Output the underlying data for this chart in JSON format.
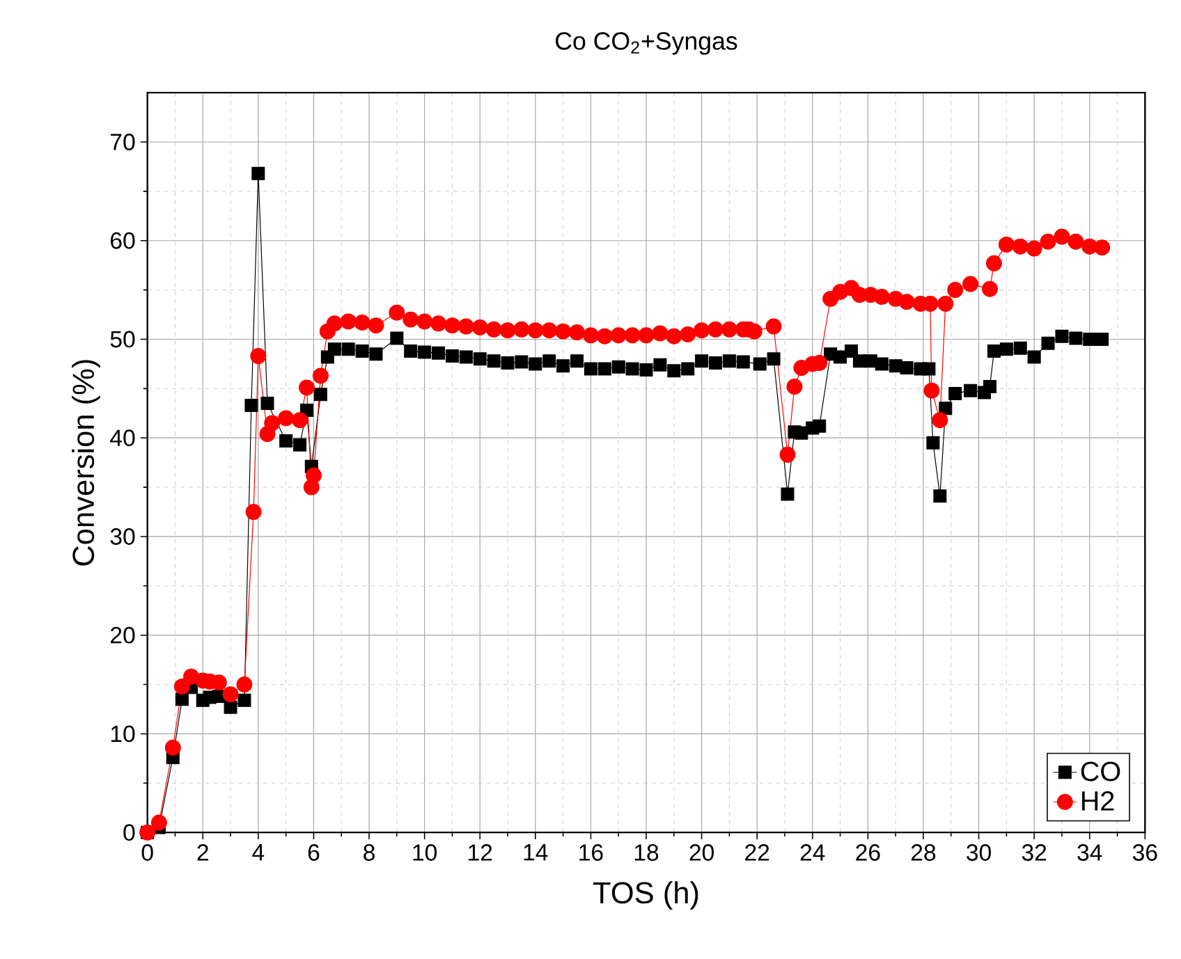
{
  "chart_data": {
    "type": "line",
    "title": "Co CO$_{2}$+Syngas",
    "xlabel": "TOS (h)",
    "ylabel": "Conversion (%)",
    "xlim": [
      0,
      36
    ],
    "xticks": [
      0,
      2,
      4,
      6,
      8,
      10,
      12,
      14,
      16,
      18,
      20,
      22,
      24,
      26,
      28,
      30,
      32,
      34,
      36
    ],
    "ylim": [
      0,
      75
    ],
    "yticks": [
      0,
      10,
      20,
      30,
      40,
      50,
      60,
      70
    ],
    "grid": true,
    "legend": "bottom right",
    "line_style": "solid",
    "series": [
      {
        "name": "CO",
        "color": "#000000",
        "marker": "square",
        "x": [
          0,
          0.42,
          0.92,
          1.25,
          1.58,
          2.0,
          2.25,
          2.58,
          3.0,
          3.5,
          3.75,
          4.0,
          4.33,
          5.0,
          5.5,
          5.75,
          5.92,
          6.25,
          6.5,
          6.75,
          7.25,
          7.75,
          8.25,
          9.0,
          9.5,
          10,
          10.5,
          11,
          11.5,
          12,
          12.5,
          13,
          13.5,
          14,
          14.5,
          15,
          15.5,
          16,
          16.5,
          17,
          17.5,
          18,
          18.5,
          19,
          19.5,
          20,
          20.5,
          21,
          21.5,
          22.1,
          22.6,
          23.1,
          23.35,
          23.6,
          24.0,
          24.25,
          24.65,
          25.0,
          25.4,
          25.7,
          26.1,
          26.5,
          27.0,
          27.4,
          27.9,
          28.2,
          28.35,
          28.6,
          28.8,
          29.15,
          29.7,
          30.2,
          30.4,
          30.55,
          31.0,
          31.5,
          32.0,
          32.5,
          33.0,
          33.5,
          34.0,
          34.45
        ],
        "values": [
          0,
          0.5,
          7.6,
          13.5,
          14.7,
          13.4,
          13.7,
          13.8,
          12.7,
          13.4,
          43.3,
          66.8,
          43.5,
          39.7,
          39.3,
          42.8,
          37.1,
          44.4,
          48.2,
          49.0,
          49.0,
          48.8,
          48.5,
          50.1,
          48.8,
          48.7,
          48.6,
          48.3,
          48.2,
          48.0,
          47.8,
          47.6,
          47.7,
          47.5,
          47.8,
          47.3,
          47.8,
          47.0,
          47.0,
          47.2,
          47.0,
          46.9,
          47.4,
          46.8,
          47.0,
          47.8,
          47.6,
          47.8,
          47.7,
          47.5,
          48.0,
          34.3,
          40.6,
          40.5,
          41.0,
          41.2,
          48.5,
          48.2,
          48.8,
          47.8,
          47.8,
          47.5,
          47.3,
          47.1,
          47.0,
          47.0,
          39.5,
          34.1,
          43.0,
          44.5,
          44.8,
          44.6,
          45.2,
          48.8,
          49.0,
          49.1,
          48.2,
          49.6,
          50.3,
          50.1,
          50.0,
          50.0
        ]
      },
      {
        "name": "H2",
        "color": "#ff0000",
        "marker": "circle",
        "x": [
          0,
          0.42,
          0.92,
          1.25,
          1.58,
          2.0,
          2.25,
          2.58,
          3.0,
          3.5,
          3.83,
          4.0,
          4.33,
          4.5,
          5.0,
          5.5,
          5.75,
          5.92,
          6.0,
          6.25,
          6.5,
          6.75,
          7.25,
          7.75,
          8.25,
          9.0,
          9.5,
          10,
          10.5,
          11,
          11.5,
          12,
          12.5,
          13,
          13.5,
          14,
          14.5,
          15,
          15.5,
          16,
          16.5,
          17,
          17.5,
          18,
          18.5,
          19,
          19.5,
          20,
          20.5,
          21,
          21.5,
          21.7,
          21.9,
          22.6,
          23.1,
          23.35,
          23.6,
          24.0,
          24.25,
          24.65,
          25.0,
          25.4,
          25.7,
          26.1,
          26.5,
          27.0,
          27.4,
          27.9,
          28.25,
          28.3,
          28.6,
          28.8,
          29.15,
          29.7,
          30.4,
          30.55,
          31.0,
          31.5,
          32.0,
          32.5,
          33.0,
          33.5,
          34.0,
          34.45
        ],
        "values": [
          0,
          1.0,
          8.6,
          14.8,
          15.8,
          15.4,
          15.3,
          15.2,
          14.0,
          15.0,
          32.5,
          48.3,
          40.4,
          41.5,
          42.0,
          41.8,
          45.1,
          35.0,
          36.2,
          46.3,
          50.8,
          51.6,
          51.8,
          51.7,
          51.4,
          52.7,
          52.0,
          51.8,
          51.6,
          51.4,
          51.3,
          51.2,
          51.0,
          50.9,
          51.0,
          50.9,
          50.9,
          50.8,
          50.7,
          50.4,
          50.3,
          50.4,
          50.4,
          50.4,
          50.6,
          50.3,
          50.5,
          50.9,
          51.0,
          51.0,
          51.0,
          51.0,
          50.8,
          51.3,
          38.3,
          45.2,
          47.1,
          47.5,
          47.6,
          54.1,
          54.8,
          55.2,
          54.5,
          54.5,
          54.3,
          54.1,
          53.8,
          53.6,
          53.6,
          44.8,
          41.8,
          53.6,
          55.0,
          55.6,
          55.1,
          57.7,
          59.6,
          59.4,
          59.2,
          59.9,
          60.4,
          59.9,
          59.4,
          59.3
        ]
      }
    ]
  }
}
